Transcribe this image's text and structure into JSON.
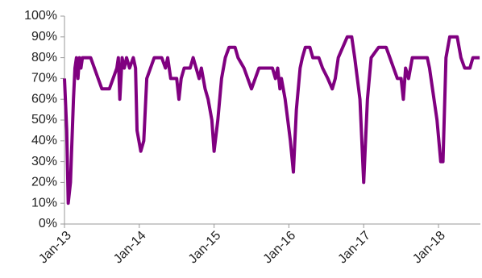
{
  "chart_data": {
    "type": "line",
    "x": [
      2013.0,
      2013.03,
      2013.05,
      2013.08,
      2013.1,
      2013.12,
      2013.14,
      2013.16,
      2013.18,
      2013.2,
      2013.22,
      2013.24,
      2013.35,
      2013.4,
      2013.45,
      2013.5,
      2013.6,
      2013.65,
      2013.7,
      2013.72,
      2013.74,
      2013.77,
      2013.8,
      2013.83,
      2013.87,
      2013.92,
      2013.95,
      2013.97,
      2014.02,
      2014.06,
      2014.1,
      2014.15,
      2014.2,
      2014.3,
      2014.35,
      2014.38,
      2014.42,
      2014.5,
      2014.53,
      2014.56,
      2014.6,
      2014.68,
      2014.72,
      2014.76,
      2014.8,
      2014.83,
      2014.88,
      2014.92,
      2014.97,
      2015.0,
      2015.05,
      2015.1,
      2015.15,
      2015.2,
      2015.28,
      2015.32,
      2015.4,
      2015.45,
      2015.5,
      2015.55,
      2015.6,
      2015.78,
      2015.82,
      2015.85,
      2015.88,
      2015.9,
      2015.95,
      2016.02,
      2016.06,
      2016.1,
      2016.15,
      2016.18,
      2016.22,
      2016.28,
      2016.32,
      2016.4,
      2016.45,
      2016.52,
      2016.58,
      2016.62,
      2016.66,
      2016.72,
      2016.78,
      2016.84,
      2016.88,
      2016.95,
      2017.0,
      2017.05,
      2017.1,
      2017.2,
      2017.3,
      2017.35,
      2017.4,
      2017.45,
      2017.5,
      2017.53,
      2017.56,
      2017.6,
      2017.65,
      2017.85,
      2017.88,
      2017.92,
      2017.98,
      2018.03,
      2018.06,
      2018.1,
      2018.15,
      2018.25,
      2018.3,
      2018.35,
      2018.42,
      2018.46,
      2018.55
    ],
    "series": [
      {
        "color": "#800080",
        "values": [
          70,
          45,
          10,
          20,
          40,
          60,
          75,
          80,
          70,
          80,
          75,
          80,
          80,
          75,
          70,
          65,
          65,
          70,
          75,
          80,
          60,
          80,
          75,
          80,
          75,
          80,
          75,
          45,
          35,
          40,
          70,
          75,
          80,
          80,
          75,
          80,
          70,
          70,
          60,
          70,
          75,
          75,
          80,
          75,
          70,
          75,
          65,
          60,
          50,
          35,
          50,
          70,
          80,
          85,
          85,
          80,
          75,
          70,
          65,
          70,
          75,
          75,
          70,
          75,
          65,
          70,
          60,
          40,
          25,
          55,
          75,
          80,
          85,
          85,
          80,
          80,
          75,
          70,
          65,
          70,
          80,
          85,
          90,
          90,
          80,
          60,
          20,
          60,
          80,
          85,
          85,
          80,
          75,
          70,
          70,
          60,
          75,
          70,
          80,
          80,
          75,
          65,
          50,
          30,
          30,
          80,
          90,
          90,
          80,
          75,
          75,
          80,
          80
        ]
      }
    ],
    "xlim": [
      2013.0,
      2018.56
    ],
    "xticks": [
      {
        "value": 2013,
        "label": "Jan-13"
      },
      {
        "value": 2014,
        "label": "Jan-14"
      },
      {
        "value": 2015,
        "label": "Jan-15"
      },
      {
        "value": 2016,
        "label": "Jan-16"
      },
      {
        "value": 2017,
        "label": "Jan-17"
      },
      {
        "value": 2018,
        "label": "Jan-18"
      }
    ],
    "ylim": [
      0,
      100
    ],
    "yticks": [
      {
        "value": 0,
        "label": "0%"
      },
      {
        "value": 10,
        "label": "10%"
      },
      {
        "value": 20,
        "label": "20%"
      },
      {
        "value": 30,
        "label": "30%"
      },
      {
        "value": 40,
        "label": "40%"
      },
      {
        "value": 50,
        "label": "50%"
      },
      {
        "value": 60,
        "label": "60%"
      },
      {
        "value": 70,
        "label": "70%"
      },
      {
        "value": 80,
        "label": "80%"
      },
      {
        "value": 90,
        "label": "90%"
      },
      {
        "value": 100,
        "label": "100%"
      }
    ],
    "grid": false
  }
}
